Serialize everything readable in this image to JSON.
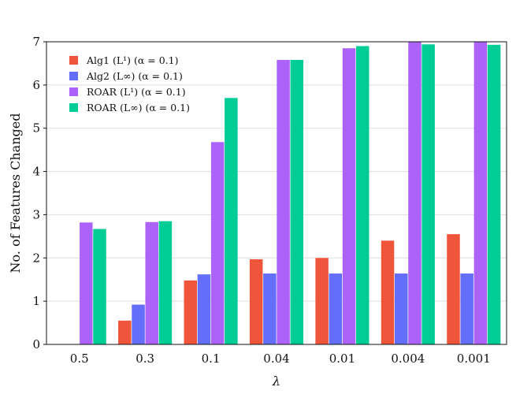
{
  "chart_data": {
    "type": "bar",
    "title": "",
    "xlabel": "λ",
    "ylabel": "No. of Features Changed",
    "categories": [
      "0.5",
      "0.3",
      "0.1",
      "0.04",
      "0.01",
      "0.004",
      "0.001"
    ],
    "ylim": [
      0,
      7
    ],
    "yticks": [
      "0",
      "1",
      "2",
      "3",
      "4",
      "5",
      "6",
      "7"
    ],
    "grid": "horizontal",
    "legend_position": "top-left",
    "series": [
      {
        "name": "Alg1 (L¹) (α = 0.1)",
        "color": "#ef553b",
        "values": [
          0.0,
          0.55,
          1.48,
          1.97,
          2.0,
          2.4,
          2.55
        ]
      },
      {
        "name": "Alg2 (L∞) (α = 0.1)",
        "color": "#636efa",
        "values": [
          0.0,
          0.92,
          1.62,
          1.64,
          1.64,
          1.64,
          1.64
        ]
      },
      {
        "name": "ROAR (L¹) (α = 0.1)",
        "color": "#ab63fa",
        "values": [
          2.82,
          2.83,
          4.68,
          6.58,
          6.85,
          7.05,
          7.05
        ]
      },
      {
        "name": "ROAR (L∞) (α = 0.1)",
        "color": "#00cc96",
        "values": [
          2.67,
          2.85,
          5.7,
          6.58,
          6.9,
          6.94,
          6.93
        ]
      }
    ]
  }
}
